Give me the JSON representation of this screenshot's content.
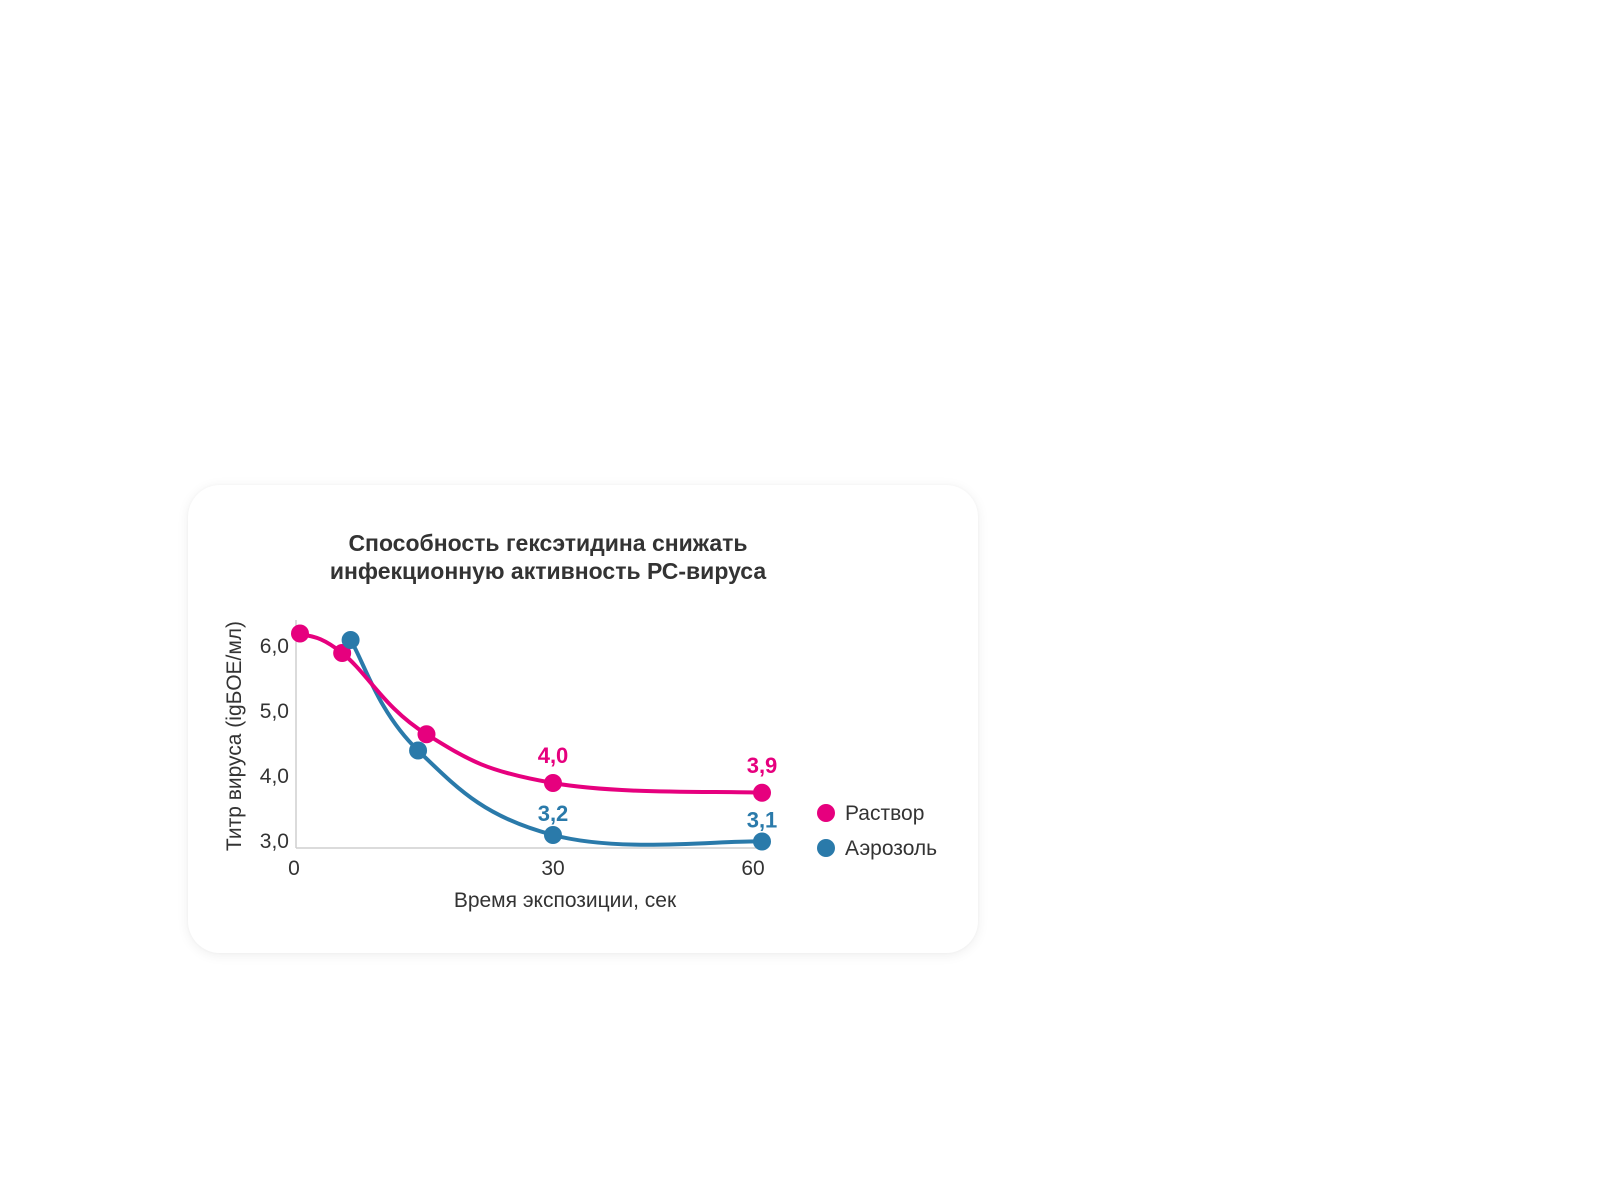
{
  "chart_data": {
    "type": "line",
    "title_line1": "Способность гексэтидина снижать",
    "title_line2": "инфекционную активность РС-вируса",
    "xlabel": "Время экспозиции, сек",
    "ylabel": "Титр вируса (igБОЕ/мл)",
    "x_ticks": [
      "0",
      "30",
      "60"
    ],
    "y_ticks": [
      "3,0",
      "4,0",
      "5,0",
      "6,0"
    ],
    "series": [
      {
        "name": "Раствор",
        "color": "#e6007e",
        "points": [
          {
            "x": 0,
            "y": 6.3
          },
          {
            "x": 5,
            "y": 6.0
          },
          {
            "x": 15,
            "y": 4.75
          },
          {
            "x": 30,
            "y": 4.0,
            "label": "4,0"
          },
          {
            "x": 60,
            "y": 3.85,
            "label": "3,9"
          }
        ]
      },
      {
        "name": "Аэрозоль",
        "color": "#2a7aaa",
        "points": [
          {
            "x": 6,
            "y": 6.2
          },
          {
            "x": 14,
            "y": 4.5
          },
          {
            "x": 30,
            "y": 3.2,
            "label": "3,2"
          },
          {
            "x": 60,
            "y": 3.1,
            "label": "3,1"
          }
        ]
      }
    ]
  }
}
